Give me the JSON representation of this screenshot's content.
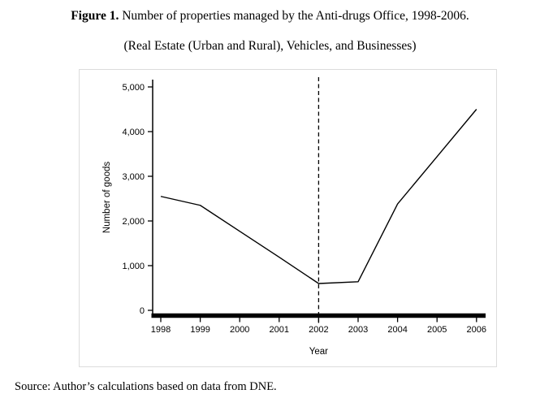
{
  "title": {
    "label": "Figure 1.",
    "caption": "Number of properties managed by the Anti-drugs Office, 1998-2006."
  },
  "subtitle": "(Real Estate (Urban and Rural), Vehicles, and Businesses)",
  "source": "Source: Author’s calculations based on data from DNE.",
  "chart_data": {
    "type": "line",
    "categories": [
      "1998",
      "1999",
      "2000",
      "2001",
      "2002",
      "2003",
      "2004",
      "2005",
      "2006"
    ],
    "values": [
      2550,
      2350,
      1770,
      1190,
      600,
      640,
      2380,
      3440,
      4500
    ],
    "title": "Number of properties managed by the Anti-drugs Office, 1998-2006",
    "xlabel": "Year",
    "ylabel": "Number of goods",
    "ylim": [
      0,
      5000
    ],
    "y_tick_labels": [
      "0",
      "1,000",
      "2,000",
      "3,000",
      "4,000",
      "5,000"
    ],
    "y_tick_values": [
      0,
      1000,
      2000,
      3000,
      4000,
      5000
    ],
    "reference_line_x": "2002",
    "reference_line_style": "dashed",
    "line_color": "#000000",
    "frame_color": "#dcdcdc",
    "grid": false,
    "legend": "none"
  }
}
